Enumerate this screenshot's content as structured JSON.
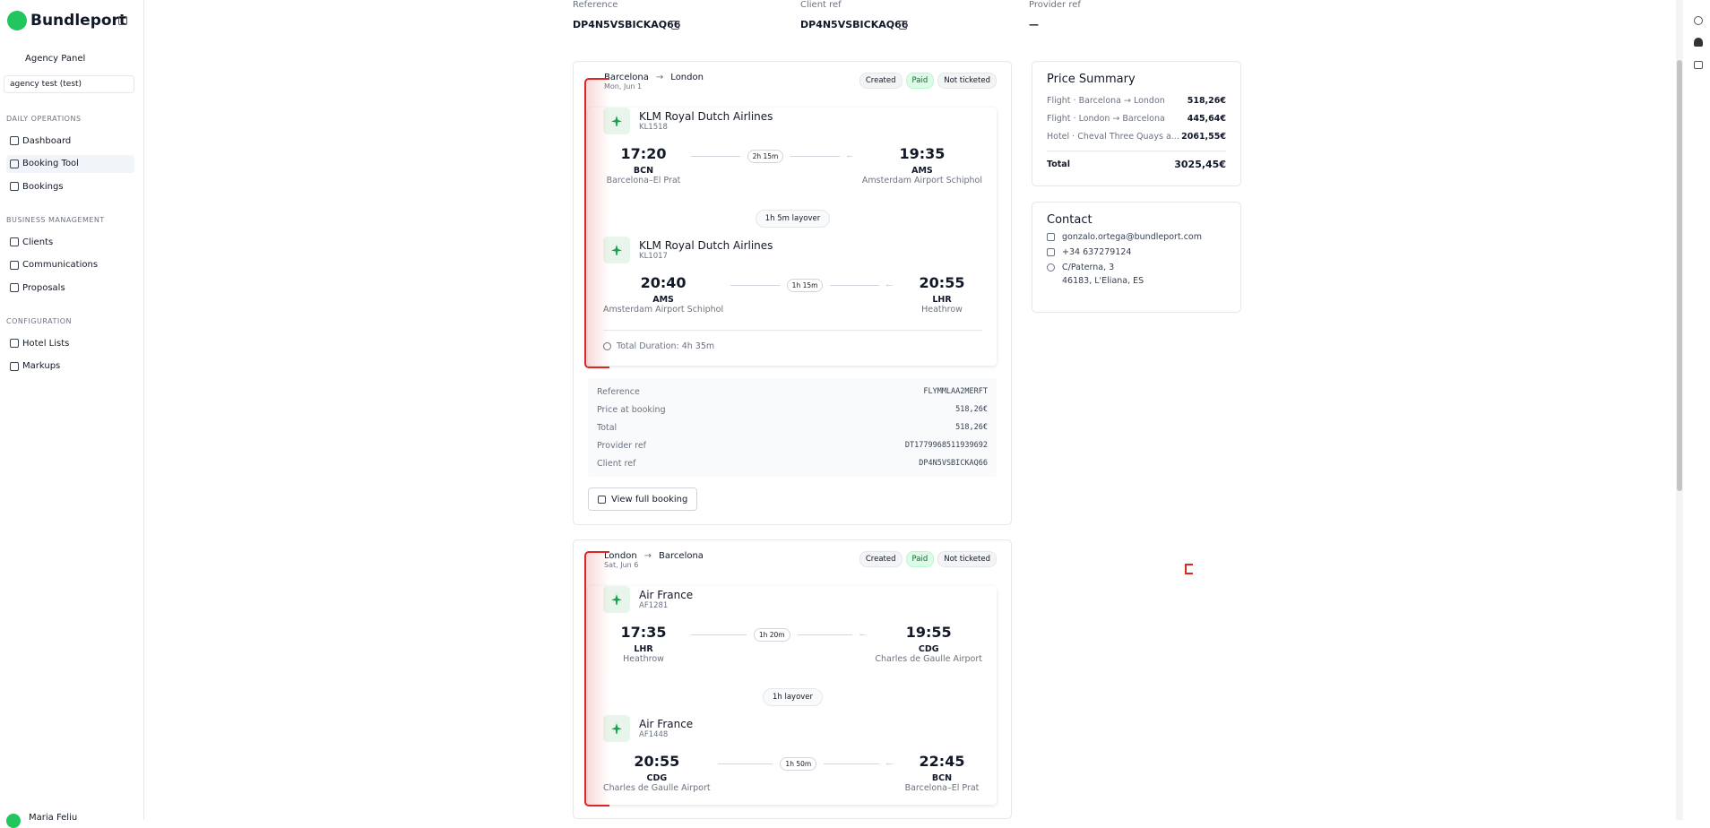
{
  "sidebar": {
    "brand": "Bundleport",
    "back": "Agency Panel",
    "agency_select": "agency test (test)",
    "sections": [
      {
        "title": "DAILY OPERATIONS",
        "items": [
          "Dashboard",
          "Booking Tool",
          "Bookings"
        ]
      },
      {
        "title": "BUSINESS MANAGEMENT",
        "items": [
          "Clients",
          "Communications",
          "Proposals"
        ]
      },
      {
        "title": "CONFIGURATION",
        "items": [
          "Hotel Lists",
          "Markups"
        ]
      }
    ],
    "user": "Maria Feliu"
  },
  "header": {
    "fields": [
      {
        "label": "Reference",
        "value": "DP4N5VSBICKAQ66"
      },
      {
        "label": "Client ref",
        "value": "DP4N5VSBICKAQ66"
      },
      {
        "label": "Provider ref",
        "value": "—"
      }
    ]
  },
  "bookings": [
    {
      "origin": "Barcelona",
      "destination": "London",
      "date": "Mon, Jun 1",
      "statuses": [
        "Created",
        "Paid",
        "Not ticketed"
      ],
      "segments": [
        {
          "airline": "KLM Royal Dutch Airlines",
          "flight": "KL1518",
          "dep_time": "17:20",
          "dep_code": "BCN",
          "dep_name": "Barcelona–El Prat",
          "duration": "2h 15m",
          "arr_time": "19:35",
          "arr_code": "AMS",
          "arr_name": "Amsterdam Airport Schiphol"
        },
        {
          "airline": "KLM Royal Dutch Airlines",
          "flight": "KL1017",
          "dep_time": "20:40",
          "dep_code": "AMS",
          "dep_name": "Amsterdam Airport Schiphol",
          "duration": "1h 15m",
          "arr_time": "20:55",
          "arr_code": "LHR",
          "arr_name": "Heathrow"
        }
      ],
      "layovers": [
        "1h 5m layover"
      ],
      "total_duration": "Total Duration: 4h 35m",
      "details": [
        {
          "label": "Reference",
          "value": "FLYMMLAA2MERFT"
        },
        {
          "label": "Price at booking",
          "value": "518,26€"
        },
        {
          "label": "Total",
          "value": "518,26€"
        },
        {
          "label": "Provider ref",
          "value": "DT1779968511939692"
        },
        {
          "label": "Client ref",
          "value": "DP4N5VSBICKAQ66"
        }
      ],
      "button": "View full booking"
    },
    {
      "origin": "London",
      "destination": "Barcelona",
      "date": "Sat, Jun 6",
      "statuses": [
        "Created",
        "Paid",
        "Not ticketed"
      ],
      "segments": [
        {
          "airline": "Air France",
          "flight": "AF1281",
          "dep_time": "17:35",
          "dep_code": "LHR",
          "dep_name": "Heathrow",
          "duration": "1h 20m",
          "arr_time": "19:55",
          "arr_code": "CDG",
          "arr_name": "Charles de Gaulle Airport"
        },
        {
          "airline": "Air France",
          "flight": "AF1448",
          "dep_time": "20:55",
          "dep_code": "CDG",
          "dep_name": "Charles de Gaulle Airport",
          "duration": "1h 50m",
          "arr_time": "22:45",
          "arr_code": "BCN",
          "arr_name": "Barcelona–El Prat"
        }
      ],
      "layovers": [
        "1h layover"
      ]
    }
  ],
  "price_summary": {
    "title": "Price Summary",
    "lines": [
      {
        "label": "Flight · Barcelona → London",
        "value": "518,26€"
      },
      {
        "label": "Flight · London → Barcelona",
        "value": "445,64€"
      },
      {
        "label": "Hotel · Cheval Three Quays a...",
        "value": "2061,55€"
      }
    ],
    "total_label": "Total",
    "total_value": "3025,45€"
  },
  "contact": {
    "title": "Contact",
    "email": "gonzalo.ortega@bundleport.com",
    "phone": "+34 637279124",
    "address": [
      "C/Paterna, 3",
      "46183, L'Eliana, ES"
    ]
  }
}
